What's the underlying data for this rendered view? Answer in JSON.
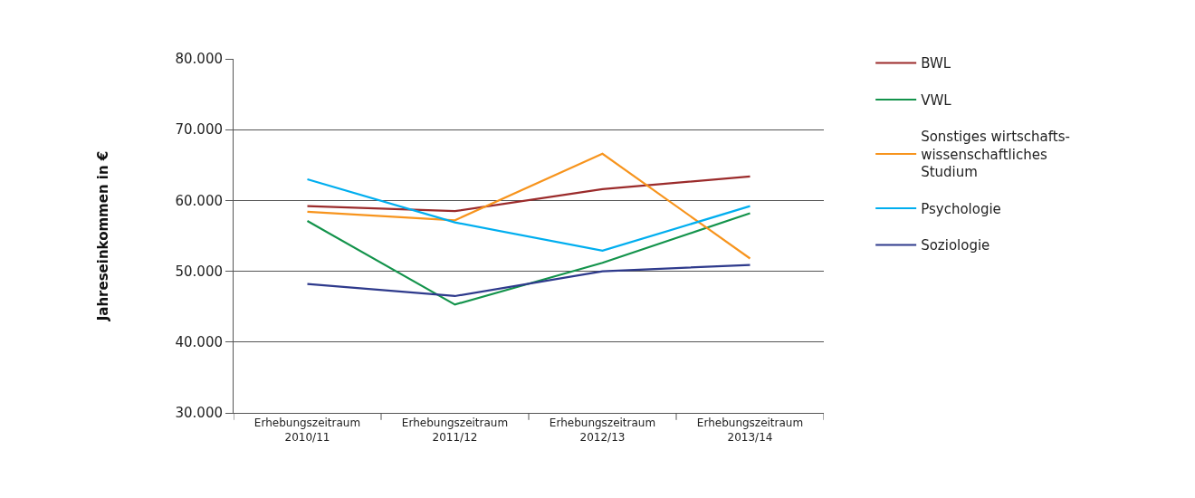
{
  "chart_data": {
    "type": "line",
    "ylabel": "Jahreseinkommen in €",
    "categories": [
      "Erhebungszeitraum\n2010/11",
      "Erhebungszeitraum\n2011/12",
      "Erhebungszeitraum\n2012/13",
      "Erhebungszeitraum\n2013/14"
    ],
    "series": [
      {
        "name": "BWL",
        "color": "#9b2b2b",
        "values": [
          59200,
          58500,
          61600,
          63400
        ]
      },
      {
        "name": "VWL",
        "color": "#13934b",
        "values": [
          57100,
          45300,
          51200,
          58200
        ]
      },
      {
        "name": "Sonstiges wirtschafts-\nwissenschaftliches\nStudium",
        "color": "#f7941d",
        "values": [
          58400,
          57200,
          66600,
          51800
        ]
      },
      {
        "name": "Psychologie",
        "color": "#00aeef",
        "values": [
          63000,
          56900,
          52900,
          59200
        ]
      },
      {
        "name": "Soziologie",
        "color": "#2e3a8c",
        "values": [
          48200,
          46500,
          50000,
          50900
        ]
      }
    ],
    "ylim": [
      30000,
      80000
    ],
    "yticks": [
      {
        "value": 30000,
        "label": "30.000"
      },
      {
        "value": 40000,
        "label": "40.000"
      },
      {
        "value": 50000,
        "label": "50.000"
      },
      {
        "value": 60000,
        "label": "60.000"
      },
      {
        "value": 70000,
        "label": "70.000"
      },
      {
        "value": 80000,
        "label": "80.000"
      }
    ],
    "grid": "y",
    "legend": "right",
    "marker": "none",
    "line_style": "solid"
  }
}
